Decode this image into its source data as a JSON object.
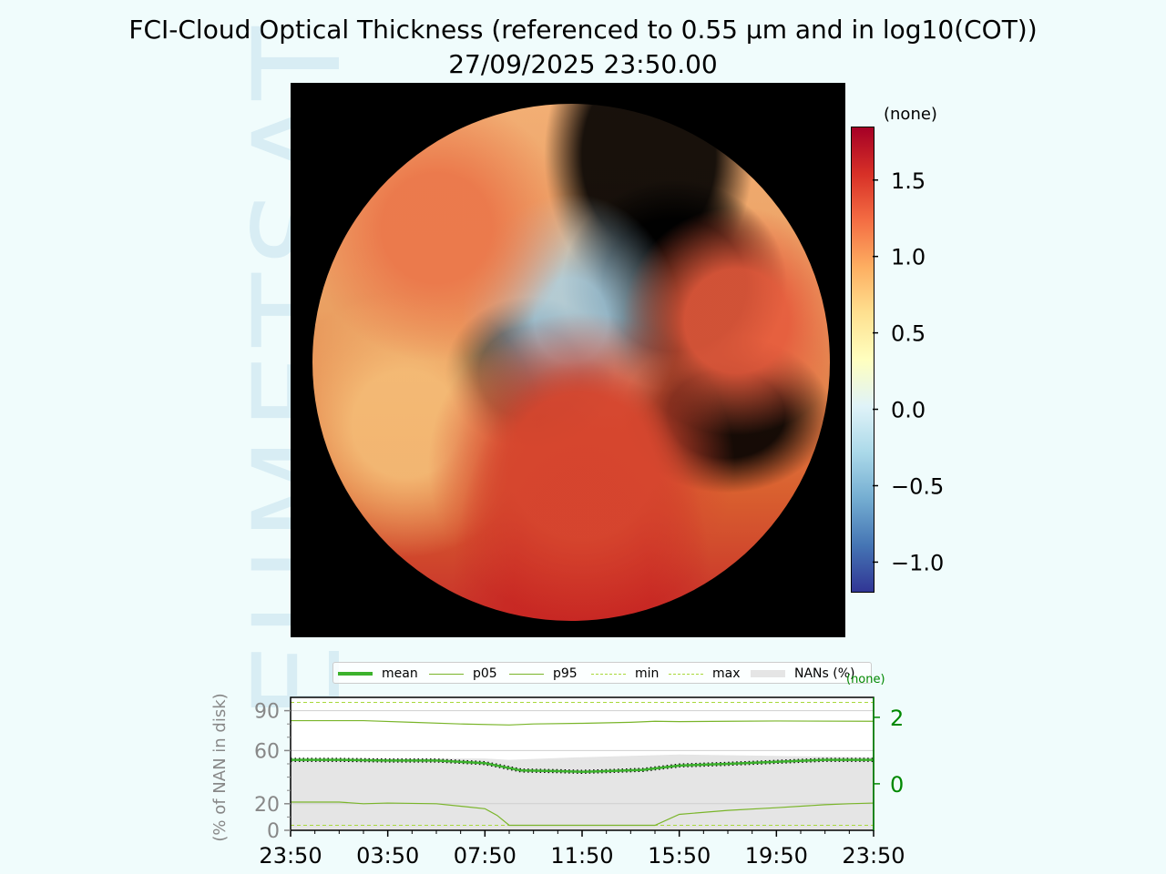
{
  "title": {
    "line1": "FCI-Cloud Optical Thickness (referenced to 0.55 µm and in log10(COT))",
    "line2": "27/09/2025 23:50.00"
  },
  "watermark": "EUMETSAT",
  "colorbar": {
    "unit_label": "(none)",
    "vmin": -1.2,
    "vmax": 1.85,
    "ticks": [
      1.5,
      1.0,
      0.5,
      0.0,
      -0.5,
      -1.0
    ],
    "tick_labels": [
      "1.5",
      "1.0",
      "0.5",
      "0.0",
      "−0.5",
      "−1.0"
    ],
    "colormap": [
      "#313695",
      "#4575b4",
      "#74add1",
      "#abd9e9",
      "#e0f3f8",
      "#ffffbf",
      "#fee090",
      "#fdae61",
      "#f46d43",
      "#d73027",
      "#a50026"
    ]
  },
  "chart_data": {
    "type": "line",
    "x_tick_labels": [
      "23:50",
      "03:50",
      "07:50",
      "11:50",
      "15:50",
      "19:50",
      "23:50"
    ],
    "x_hours": [
      0,
      4,
      8,
      12,
      16,
      20,
      24
    ],
    "ylabel_left": "(% of NAN in disk)",
    "left_ticks": [
      0,
      20,
      60,
      90
    ],
    "left_tick_labels": [
      "0",
      "20",
      "60",
      "90"
    ],
    "ylim_left": [
      0,
      100
    ],
    "right_ticks": [
      0,
      2
    ],
    "right_tick_labels": [
      "0",
      "2"
    ],
    "ylim_right": [
      -1.4,
      2.6
    ],
    "right_unit": "(none)",
    "legend": [
      "mean",
      "p05",
      "p95",
      "min",
      "max",
      "NANs (%)"
    ],
    "colors": {
      "mean": "#3cb22c",
      "p05": "#7ab52a",
      "p95": "#7ab52a",
      "min": "#a8d83a",
      "max": "#a8d83a",
      "nan": "#e5e5e5",
      "right_axis": "#008800",
      "left_axis": "#888888"
    },
    "series": [
      {
        "name": "mean",
        "x": [
          0,
          2,
          4,
          6,
          8,
          9.5,
          11,
          12,
          13,
          14.5,
          16,
          18,
          20,
          22,
          24
        ],
        "y": [
          0.72,
          0.72,
          0.7,
          0.7,
          0.62,
          0.4,
          0.38,
          0.36,
          0.38,
          0.42,
          0.55,
          0.6,
          0.66,
          0.72,
          0.72
        ]
      },
      {
        "name": "p05",
        "x": [
          0,
          2,
          3,
          4,
          6,
          8,
          8.5,
          9,
          12,
          14,
          15,
          16,
          18,
          20,
          22,
          23,
          24
        ],
        "y": [
          -0.55,
          -0.55,
          -0.6,
          -0.58,
          -0.6,
          -0.75,
          -0.95,
          -1.25,
          -1.25,
          -1.25,
          -1.25,
          -0.92,
          -0.8,
          -0.72,
          -0.63,
          -0.6,
          -0.58
        ]
      },
      {
        "name": "p95",
        "x": [
          0,
          3,
          5,
          7,
          9,
          10,
          12,
          14,
          15,
          16,
          18,
          20,
          24
        ],
        "y": [
          1.9,
          1.9,
          1.85,
          1.8,
          1.77,
          1.8,
          1.82,
          1.85,
          1.88,
          1.87,
          1.88,
          1.89,
          1.88
        ]
      },
      {
        "name": "min",
        "x": [
          0,
          24
        ],
        "y": [
          -1.25,
          -1.25
        ]
      },
      {
        "name": "max",
        "x": [
          0,
          24
        ],
        "y": [
          2.45,
          2.45
        ]
      },
      {
        "name": "NANs (%)",
        "x": [
          0,
          4,
          8,
          9,
          12,
          14,
          16,
          20,
          24
        ],
        "y": [
          54,
          54,
          54,
          53,
          55,
          56,
          57,
          56,
          55
        ]
      }
    ]
  }
}
